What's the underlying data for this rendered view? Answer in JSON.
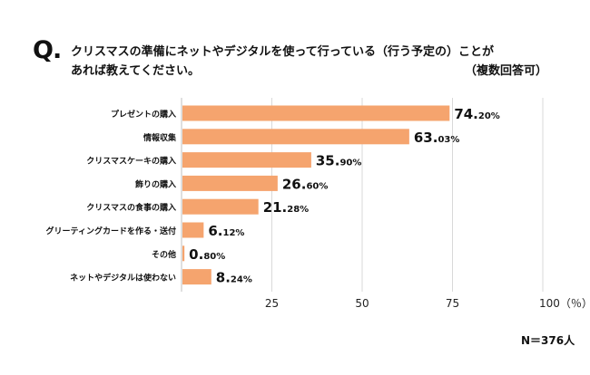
{
  "question": {
    "mark": "Q.",
    "line1": "クリスマスの準備にネットやデジタルを使って行っている（行う予定の）ことが",
    "line2": "あれば教えてください。",
    "note": "（複数回答可）"
  },
  "sample_size": "N＝376人",
  "colors": {
    "bar": "#F5A46E",
    "grid": "#D9D9D9",
    "text": "#111111"
  },
  "chart_data": {
    "type": "bar",
    "orientation": "horizontal",
    "title": "",
    "categories": [
      "プレゼントの購入",
      "情報収集",
      "クリスマスケーキの購入",
      "飾りの購入",
      "クリスマスの食事の購入",
      "グリーティングカードを作る・送付",
      "その他",
      "ネットやデジタルは使わない"
    ],
    "values": [
      74.2,
      63.03,
      35.9,
      26.6,
      21.28,
      6.12,
      0.8,
      8.24
    ],
    "value_labels": [
      {
        "main": "74.",
        "frac": "20%"
      },
      {
        "main": "63.",
        "frac": "03%"
      },
      {
        "main": "35.",
        "frac": "90%"
      },
      {
        "main": "26.",
        "frac": "60%"
      },
      {
        "main": "21.",
        "frac": "28%"
      },
      {
        "main": "6.",
        "frac": "12%"
      },
      {
        "main": "0.",
        "frac": "80%"
      },
      {
        "main": "8.",
        "frac": "24%"
      }
    ],
    "xlim": [
      0,
      100
    ],
    "xticks": [
      25,
      50,
      75,
      100
    ],
    "xtick_labels": [
      "25",
      "50",
      "75",
      "100（％）"
    ],
    "grid": true
  }
}
